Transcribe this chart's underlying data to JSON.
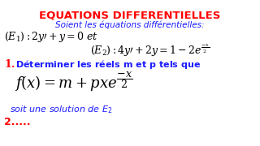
{
  "title": "EQUATIONS DIFFERENTIELLES",
  "title_color": "#ff0000",
  "subtitle": "Soient les équations différentielles:",
  "subtitle_color": "#1a1aff",
  "blue_color": "#1a1aff",
  "red_color": "#ff0000",
  "black_color": "#000000",
  "bg_color": "#ffffff",
  "question2": "2....."
}
